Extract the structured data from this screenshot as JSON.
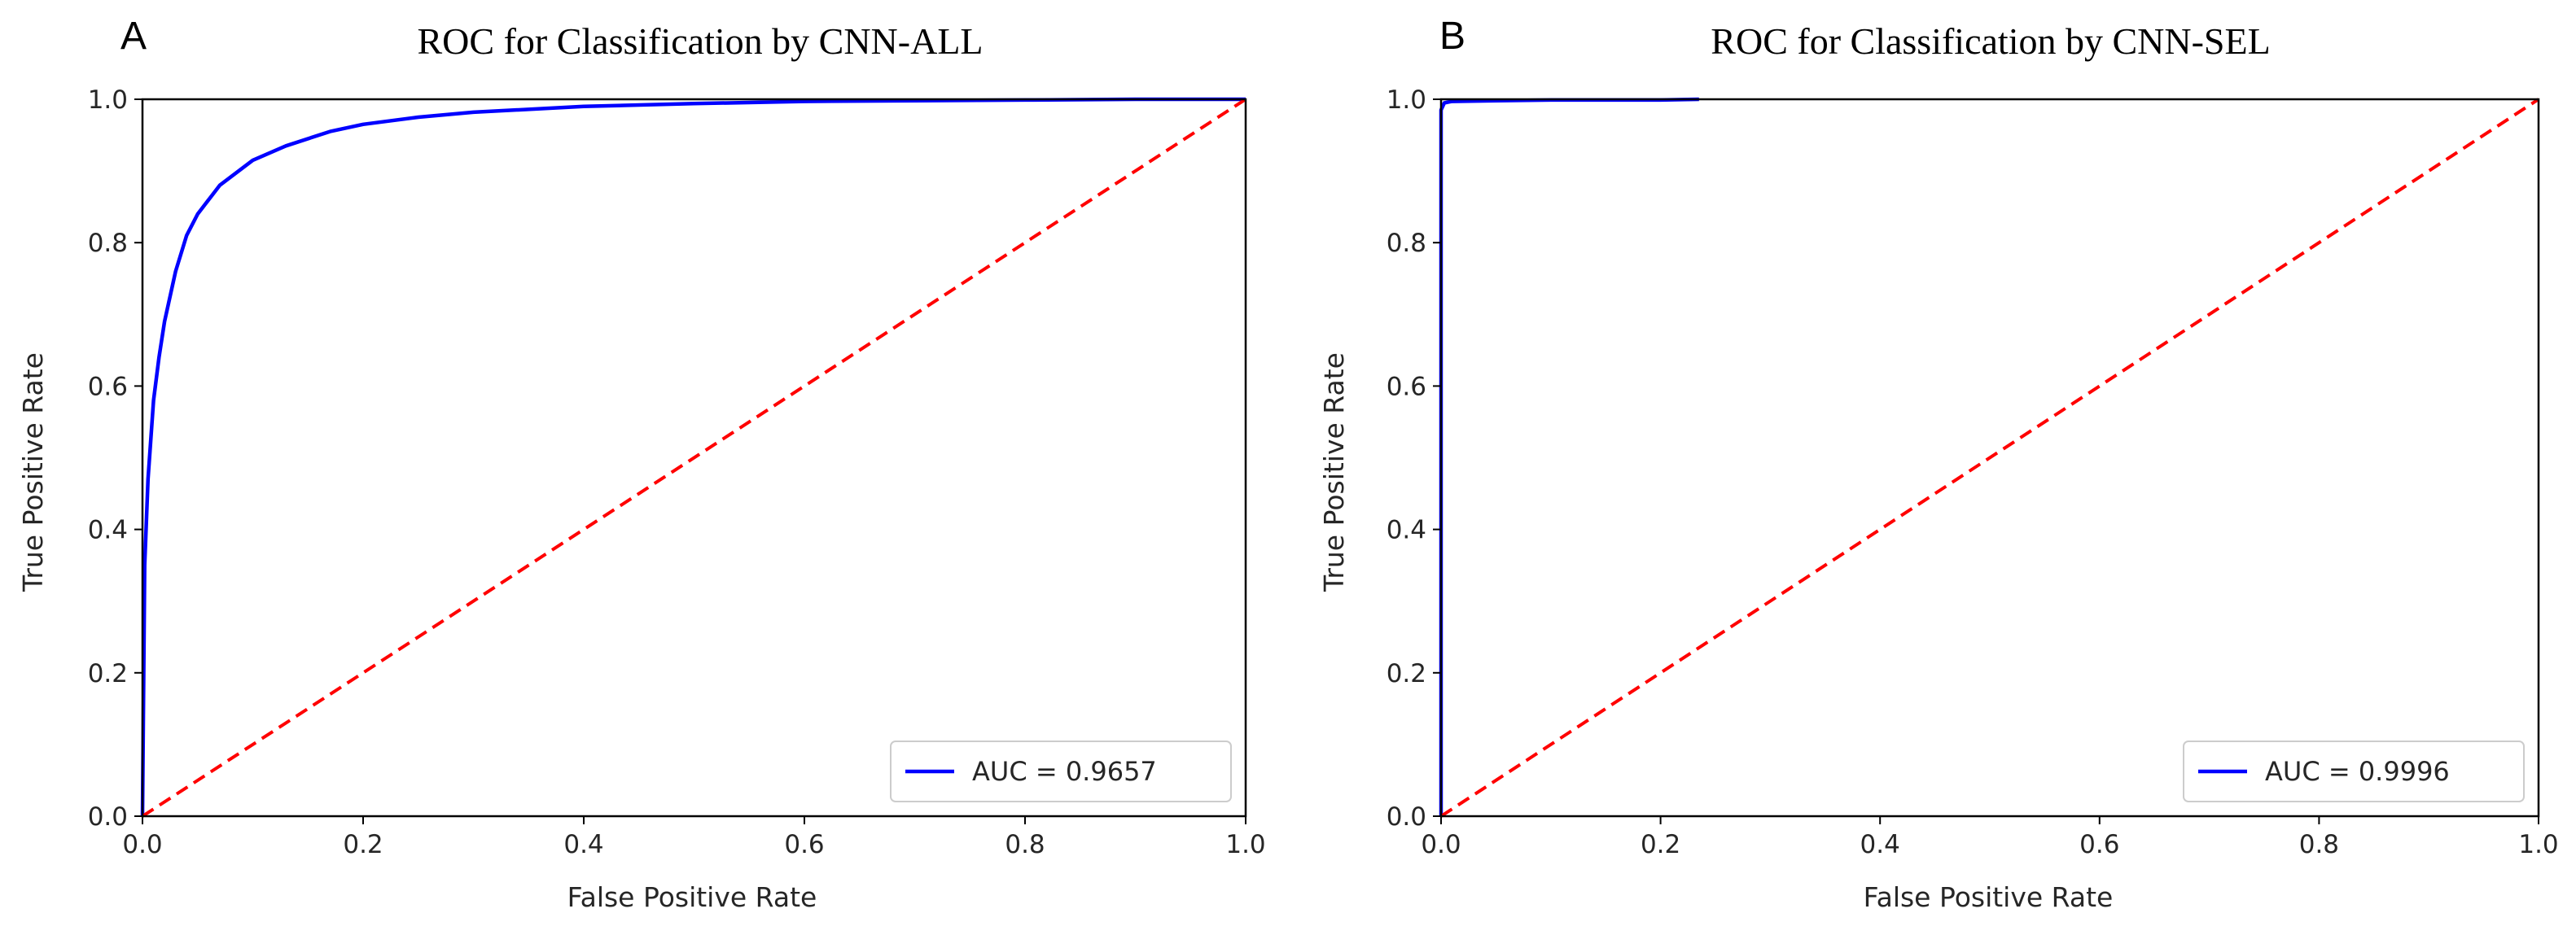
{
  "chart_data": [
    {
      "panel_label": "A",
      "type": "line",
      "title": "ROC for Classification by CNN-ALL",
      "xlabel": "False Positive Rate",
      "ylabel": "True Positive Rate",
      "xlim": [
        0,
        1
      ],
      "ylim": [
        0,
        1
      ],
      "xticks": [
        "0.0",
        "0.2",
        "0.4",
        "0.6",
        "0.8",
        "1.0"
      ],
      "yticks": [
        "0.0",
        "0.2",
        "0.4",
        "0.6",
        "0.8",
        "1.0"
      ],
      "grid": false,
      "legend_position": "lower-right",
      "series": [
        {
          "name": "AUC = 0.9657",
          "color": "#0000ff",
          "style": "solid",
          "x": [
            0,
            0.002,
            0.005,
            0.01,
            0.015,
            0.02,
            0.03,
            0.04,
            0.05,
            0.07,
            0.1,
            0.13,
            0.17,
            0.2,
            0.25,
            0.3,
            0.4,
            0.5,
            0.6,
            0.7,
            0.8,
            0.9,
            1.0
          ],
          "y": [
            0,
            0.35,
            0.47,
            0.58,
            0.64,
            0.69,
            0.76,
            0.81,
            0.84,
            0.88,
            0.915,
            0.935,
            0.955,
            0.965,
            0.975,
            0.982,
            0.99,
            0.994,
            0.997,
            0.998,
            0.999,
            1.0,
            1.0
          ]
        },
        {
          "name": "",
          "color": "#ff0000",
          "style": "dashed",
          "x": [
            0,
            1
          ],
          "y": [
            0,
            1
          ]
        }
      ]
    },
    {
      "panel_label": "B",
      "type": "line",
      "title": "ROC for Classification by CNN-SEL",
      "xlabel": "False Positive Rate",
      "ylabel": "True Positive Rate",
      "xlim": [
        0,
        1
      ],
      "ylim": [
        0,
        1
      ],
      "xticks": [
        "0.0",
        "0.2",
        "0.4",
        "0.6",
        "0.8",
        "1.0"
      ],
      "yticks": [
        "0.0",
        "0.2",
        "0.4",
        "0.6",
        "0.8",
        "1.0"
      ],
      "grid": false,
      "legend_position": "lower-right",
      "series": [
        {
          "name": "AUC = 0.9996",
          "color": "#0000ff",
          "style": "solid",
          "x": [
            0,
            0,
            0.003,
            0.01,
            0.05,
            0.1,
            0.2,
            0.235
          ],
          "y": [
            0,
            0.985,
            0.995,
            0.997,
            0.998,
            0.999,
            0.999,
            1.0
          ]
        },
        {
          "name": "",
          "color": "#ff0000",
          "style": "dashed",
          "x": [
            0,
            1
          ],
          "y": [
            0,
            1
          ]
        }
      ]
    }
  ]
}
